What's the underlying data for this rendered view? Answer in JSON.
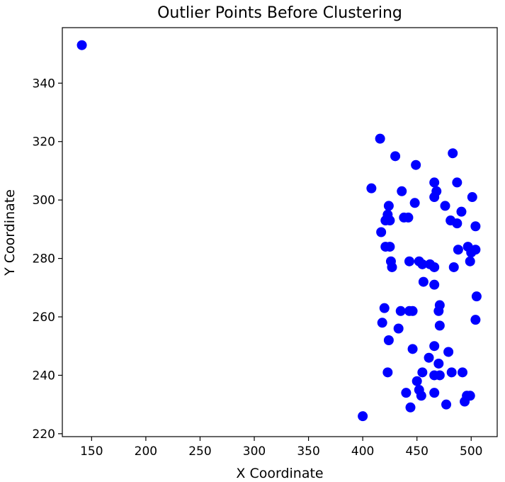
{
  "chart_data": {
    "type": "scatter",
    "title": "Outlier Points Before Clustering",
    "xlabel": "X Coordinate",
    "ylabel": "Y Coordinate",
    "xlim": [
      123,
      524
    ],
    "ylim": [
      219,
      359
    ],
    "xticks": [
      150,
      200,
      250,
      300,
      350,
      400,
      450,
      500
    ],
    "yticks": [
      220,
      240,
      260,
      280,
      300,
      320,
      340
    ],
    "grid": false,
    "point_color": "#0000ff",
    "points": [
      [
        141,
        353
      ],
      [
        400,
        226
      ],
      [
        416,
        321
      ],
      [
        430,
        315
      ],
      [
        449,
        312
      ],
      [
        483,
        316
      ],
      [
        408,
        304
      ],
      [
        436,
        303
      ],
      [
        466,
        306
      ],
      [
        468,
        303
      ],
      [
        487,
        306
      ],
      [
        466,
        301
      ],
      [
        501,
        301
      ],
      [
        424,
        298
      ],
      [
        448,
        299
      ],
      [
        476,
        298
      ],
      [
        491,
        296
      ],
      [
        423,
        295
      ],
      [
        425,
        293
      ],
      [
        421,
        293
      ],
      [
        438,
        294
      ],
      [
        442,
        294
      ],
      [
        481,
        293
      ],
      [
        487,
        292
      ],
      [
        504,
        291
      ],
      [
        417,
        289
      ],
      [
        421,
        284
      ],
      [
        425,
        284
      ],
      [
        488,
        283
      ],
      [
        497,
        284
      ],
      [
        504,
        283
      ],
      [
        500,
        282
      ],
      [
        426,
        279
      ],
      [
        443,
        279
      ],
      [
        452,
        279
      ],
      [
        455,
        278
      ],
      [
        462,
        278
      ],
      [
        466,
        277
      ],
      [
        427,
        277
      ],
      [
        484,
        277
      ],
      [
        499,
        279
      ],
      [
        456,
        272
      ],
      [
        466,
        271
      ],
      [
        505,
        267
      ],
      [
        471,
        264
      ],
      [
        420,
        263
      ],
      [
        435,
        262
      ],
      [
        443,
        262
      ],
      [
        446,
        262
      ],
      [
        470,
        262
      ],
      [
        418,
        258
      ],
      [
        504,
        259
      ],
      [
        433,
        256
      ],
      [
        471,
        257
      ],
      [
        424,
        252
      ],
      [
        446,
        249
      ],
      [
        466,
        250
      ],
      [
        479,
        248
      ],
      [
        461,
        246
      ],
      [
        470,
        244
      ],
      [
        423,
        241
      ],
      [
        455,
        241
      ],
      [
        466,
        240
      ],
      [
        471,
        240
      ],
      [
        482,
        241
      ],
      [
        492,
        241
      ],
      [
        450,
        238
      ],
      [
        440,
        234
      ],
      [
        452,
        235
      ],
      [
        454,
        233
      ],
      [
        466,
        234
      ],
      [
        496,
        233
      ],
      [
        499,
        233
      ],
      [
        494,
        231
      ],
      [
        477,
        230
      ],
      [
        444,
        229
      ]
    ]
  }
}
